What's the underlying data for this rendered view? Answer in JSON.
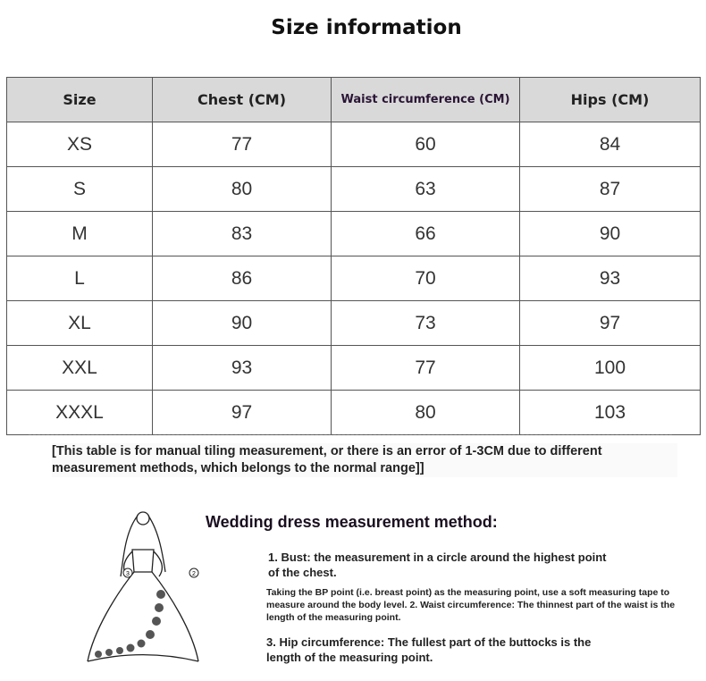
{
  "title": "Size information",
  "table": {
    "headers": [
      "Size",
      "Chest (CM)",
      "Waist circumference (CM)",
      "Hips (CM)"
    ],
    "rows": [
      [
        "XS",
        "77",
        "60",
        "84"
      ],
      [
        "S",
        "80",
        "63",
        "87"
      ],
      [
        "M",
        "83",
        "66",
        "90"
      ],
      [
        "L",
        "86",
        "70",
        "93"
      ],
      [
        "XL",
        "90",
        "73",
        "97"
      ],
      [
        "XXL",
        "93",
        "77",
        "100"
      ],
      [
        "XXXL",
        "97",
        "80",
        "103"
      ]
    ]
  },
  "note": "[This table is for manual tiling measurement, or there is an error of 1-3CM due to different measurement methods, which belongs to the normal range]]",
  "method": {
    "title": "Wedding dress measurement method:",
    "bust": "1. Bust: the measurement in a circle around the highest point of the chest.",
    "detail": "Taking the BP point (i.e. breast point) as the measuring point, use a soft measuring tape to measure around the body level. 2. Waist circumference: The thinnest part of the waist is the length of the measuring point.",
    "hip": "3. Hip circumference: The fullest part of the buttocks is the length of the measuring point.",
    "markers": [
      "3",
      "2"
    ]
  }
}
